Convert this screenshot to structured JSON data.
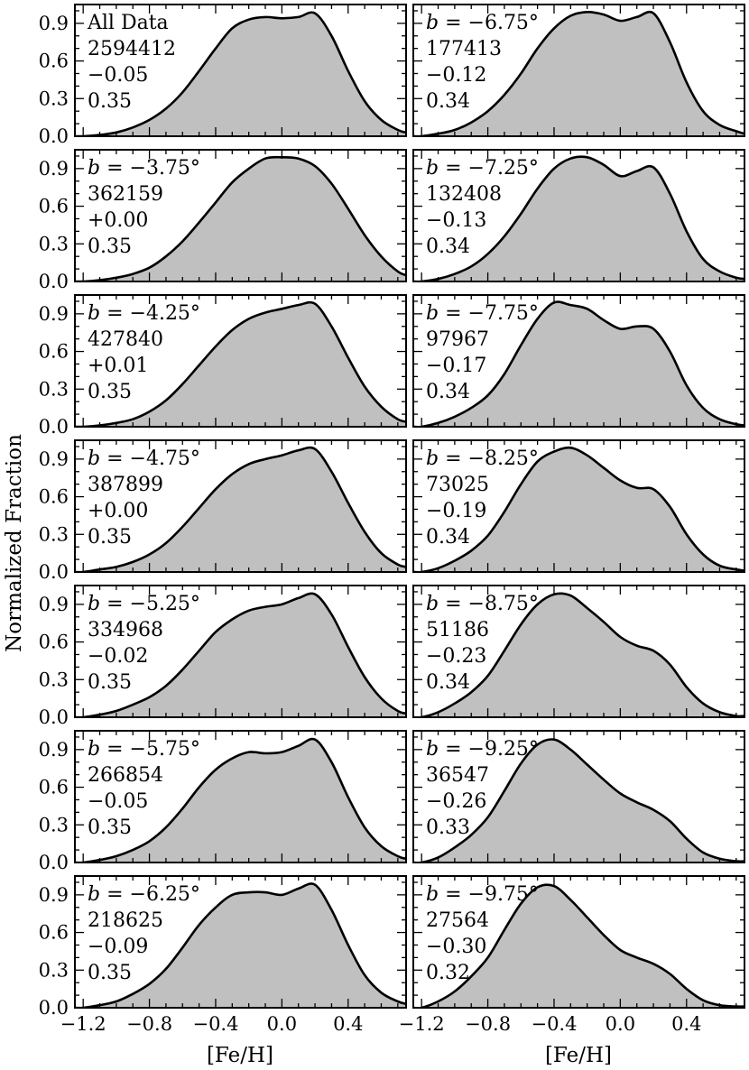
{
  "ylabel": "Normalized Fraction",
  "xlabel": "[Fe/H]",
  "colors": {
    "fill": "#c0c0c0",
    "line": "#000000",
    "frame": "#000000"
  },
  "chart_data": {
    "type": "area",
    "grid": false,
    "xlim": [
      -1.25,
      0.75
    ],
    "ylim": [
      0.0,
      1.05
    ],
    "xticks": [
      -1.2,
      -0.8,
      -0.4,
      0.0,
      0.4
    ],
    "xtick_labels": [
      "-1.2",
      "-0.8",
      "-0.4",
      "0.0",
      "0.4"
    ],
    "yticks": [
      0.0,
      0.3,
      0.6,
      0.9
    ],
    "ytick_labels": [
      "0.0",
      "0.3",
      "0.6",
      "0.9"
    ],
    "panels": [
      {
        "col": 0,
        "row": 0,
        "label": "All Data",
        "count": "2594412",
        "mean": "−0.05",
        "sigma": "0.35",
        "x": [
          -1.25,
          -1.2,
          -1.1,
          -1.0,
          -0.9,
          -0.8,
          -0.7,
          -0.6,
          -0.5,
          -0.4,
          -0.3,
          -0.2,
          -0.1,
          0.0,
          0.1,
          0.2,
          0.3,
          0.4,
          0.5,
          0.6,
          0.7,
          0.75
        ],
        "y": [
          0.0,
          0.0,
          0.01,
          0.03,
          0.07,
          0.13,
          0.22,
          0.35,
          0.52,
          0.7,
          0.86,
          0.93,
          0.95,
          0.94,
          0.95,
          0.98,
          0.8,
          0.52,
          0.28,
          0.13,
          0.05,
          0.03
        ]
      },
      {
        "col": 1,
        "row": 0,
        "label": "b=−6.75°",
        "count": "177413",
        "mean": "−0.12",
        "sigma": "0.34",
        "x": [
          -1.25,
          -1.2,
          -1.1,
          -1.0,
          -0.9,
          -0.8,
          -0.7,
          -0.6,
          -0.5,
          -0.4,
          -0.3,
          -0.2,
          -0.1,
          0.0,
          0.1,
          0.2,
          0.3,
          0.4,
          0.5,
          0.6,
          0.7,
          0.75
        ],
        "y": [
          0.0,
          0.0,
          0.02,
          0.05,
          0.11,
          0.2,
          0.33,
          0.5,
          0.7,
          0.86,
          0.96,
          0.99,
          0.97,
          0.92,
          0.95,
          0.98,
          0.75,
          0.43,
          0.2,
          0.09,
          0.04,
          0.02
        ]
      },
      {
        "col": 0,
        "row": 1,
        "label": "b=−3.75°",
        "count": "362159",
        "mean": "+0.00",
        "sigma": "0.35",
        "x": [
          -1.25,
          -1.2,
          -1.1,
          -1.0,
          -0.9,
          -0.8,
          -0.7,
          -0.6,
          -0.5,
          -0.4,
          -0.3,
          -0.2,
          -0.1,
          0.0,
          0.1,
          0.2,
          0.3,
          0.4,
          0.5,
          0.6,
          0.7,
          0.75
        ],
        "y": [
          0.0,
          0.0,
          0.01,
          0.03,
          0.06,
          0.11,
          0.2,
          0.32,
          0.47,
          0.63,
          0.79,
          0.9,
          0.98,
          0.99,
          0.98,
          0.92,
          0.78,
          0.58,
          0.37,
          0.2,
          0.08,
          0.05
        ]
      },
      {
        "col": 1,
        "row": 1,
        "label": "b=−7.25°",
        "count": "132408",
        "mean": "−0.13",
        "sigma": "0.34",
        "x": [
          -1.25,
          -1.2,
          -1.1,
          -1.0,
          -0.9,
          -0.8,
          -0.7,
          -0.6,
          -0.5,
          -0.4,
          -0.3,
          -0.2,
          -0.1,
          0.0,
          0.1,
          0.2,
          0.3,
          0.4,
          0.5,
          0.6,
          0.7,
          0.75
        ],
        "y": [
          0.0,
          0.0,
          0.02,
          0.06,
          0.12,
          0.22,
          0.36,
          0.54,
          0.74,
          0.9,
          0.98,
          0.99,
          0.93,
          0.84,
          0.88,
          0.91,
          0.7,
          0.4,
          0.18,
          0.08,
          0.03,
          0.02
        ]
      },
      {
        "col": 0,
        "row": 2,
        "label": "b=−4.25°",
        "count": "427840",
        "mean": "+0.01",
        "sigma": "0.35",
        "x": [
          -1.25,
          -1.2,
          -1.1,
          -1.0,
          -0.9,
          -0.8,
          -0.7,
          -0.6,
          -0.5,
          -0.4,
          -0.3,
          -0.2,
          -0.1,
          0.0,
          0.1,
          0.2,
          0.3,
          0.4,
          0.5,
          0.6,
          0.7,
          0.75
        ],
        "y": [
          0.0,
          0.0,
          0.01,
          0.03,
          0.06,
          0.12,
          0.21,
          0.34,
          0.49,
          0.64,
          0.77,
          0.86,
          0.91,
          0.94,
          0.97,
          0.98,
          0.8,
          0.55,
          0.32,
          0.16,
          0.06,
          0.04
        ]
      },
      {
        "col": 1,
        "row": 2,
        "label": "b=−7.75°",
        "count": "97967",
        "mean": "−0.17",
        "sigma": "0.34",
        "x": [
          -1.25,
          -1.2,
          -1.1,
          -1.0,
          -0.9,
          -0.8,
          -0.7,
          -0.6,
          -0.5,
          -0.4,
          -0.3,
          -0.2,
          -0.1,
          0.0,
          0.1,
          0.2,
          0.3,
          0.4,
          0.5,
          0.6,
          0.7,
          0.75
        ],
        "y": [
          0.0,
          0.0,
          0.03,
          0.08,
          0.15,
          0.25,
          0.42,
          0.65,
          0.86,
          0.99,
          0.97,
          0.94,
          0.85,
          0.78,
          0.8,
          0.78,
          0.6,
          0.33,
          0.15,
          0.06,
          0.02,
          0.01
        ]
      },
      {
        "col": 0,
        "row": 3,
        "label": "b=−4.75°",
        "count": "387899",
        "mean": "+0.00",
        "sigma": "0.35",
        "x": [
          -1.25,
          -1.2,
          -1.1,
          -1.0,
          -0.9,
          -0.8,
          -0.7,
          -0.6,
          -0.5,
          -0.4,
          -0.3,
          -0.2,
          -0.1,
          0.0,
          0.1,
          0.2,
          0.3,
          0.4,
          0.5,
          0.6,
          0.7,
          0.75
        ],
        "y": [
          0.0,
          0.0,
          0.02,
          0.04,
          0.08,
          0.14,
          0.23,
          0.36,
          0.51,
          0.66,
          0.78,
          0.86,
          0.9,
          0.93,
          0.97,
          0.98,
          0.8,
          0.55,
          0.32,
          0.15,
          0.06,
          0.04
        ]
      },
      {
        "col": 1,
        "row": 3,
        "label": "b=−8.25°",
        "count": "73025",
        "mean": "−0.19",
        "sigma": "0.34",
        "x": [
          -1.25,
          -1.2,
          -1.1,
          -1.0,
          -0.9,
          -0.8,
          -0.7,
          -0.6,
          -0.5,
          -0.4,
          -0.3,
          -0.2,
          -0.1,
          0.0,
          0.1,
          0.2,
          0.3,
          0.4,
          0.5,
          0.6,
          0.7,
          0.75
        ],
        "y": [
          0.0,
          0.0,
          0.03,
          0.09,
          0.17,
          0.29,
          0.48,
          0.7,
          0.88,
          0.96,
          0.99,
          0.93,
          0.83,
          0.73,
          0.67,
          0.66,
          0.52,
          0.3,
          0.14,
          0.05,
          0.02,
          0.01
        ]
      },
      {
        "col": 0,
        "row": 4,
        "label": "b=−5.25°",
        "count": "334968",
        "mean": "−0.02",
        "sigma": "0.35",
        "x": [
          -1.25,
          -1.2,
          -1.1,
          -1.0,
          -0.9,
          -0.8,
          -0.7,
          -0.6,
          -0.5,
          -0.4,
          -0.3,
          -0.2,
          -0.1,
          0.0,
          0.1,
          0.2,
          0.3,
          0.4,
          0.5,
          0.6,
          0.7,
          0.75
        ],
        "y": [
          0.0,
          0.0,
          0.02,
          0.05,
          0.1,
          0.16,
          0.25,
          0.38,
          0.53,
          0.68,
          0.78,
          0.85,
          0.88,
          0.9,
          0.95,
          0.98,
          0.82,
          0.56,
          0.32,
          0.15,
          0.05,
          0.03
        ]
      },
      {
        "col": 1,
        "row": 4,
        "label": "b=−8.75°",
        "count": "51186",
        "mean": "−0.23",
        "sigma": "0.34",
        "x": [
          -1.25,
          -1.2,
          -1.1,
          -1.0,
          -0.9,
          -0.8,
          -0.7,
          -0.6,
          -0.5,
          -0.4,
          -0.3,
          -0.2,
          -0.1,
          0.0,
          0.1,
          0.2,
          0.3,
          0.4,
          0.5,
          0.6,
          0.7,
          0.75
        ],
        "y": [
          0.0,
          0.0,
          0.04,
          0.11,
          0.2,
          0.33,
          0.53,
          0.74,
          0.9,
          0.98,
          0.97,
          0.87,
          0.76,
          0.64,
          0.57,
          0.53,
          0.42,
          0.24,
          0.11,
          0.04,
          0.01,
          0.01
        ]
      },
      {
        "col": 0,
        "row": 5,
        "label": "b=−5.75°",
        "count": "266854",
        "mean": "−0.05",
        "sigma": "0.35",
        "x": [
          -1.25,
          -1.2,
          -1.1,
          -1.0,
          -0.9,
          -0.8,
          -0.7,
          -0.6,
          -0.5,
          -0.4,
          -0.3,
          -0.2,
          -0.1,
          0.0,
          0.1,
          0.2,
          0.3,
          0.4,
          0.5,
          0.6,
          0.7,
          0.75
        ],
        "y": [
          0.0,
          0.0,
          0.02,
          0.05,
          0.1,
          0.17,
          0.28,
          0.43,
          0.6,
          0.74,
          0.83,
          0.88,
          0.87,
          0.88,
          0.93,
          0.98,
          0.8,
          0.52,
          0.28,
          0.13,
          0.05,
          0.03
        ]
      },
      {
        "col": 1,
        "row": 5,
        "label": "b=−9.25°",
        "count": "36547",
        "mean": "−0.26",
        "sigma": "0.33",
        "x": [
          -1.25,
          -1.2,
          -1.1,
          -1.0,
          -0.9,
          -0.8,
          -0.7,
          -0.6,
          -0.5,
          -0.4,
          -0.3,
          -0.2,
          -0.1,
          0.0,
          0.1,
          0.2,
          0.3,
          0.4,
          0.5,
          0.6,
          0.7,
          0.75
        ],
        "y": [
          0.0,
          0.0,
          0.04,
          0.12,
          0.22,
          0.36,
          0.57,
          0.79,
          0.94,
          0.98,
          0.9,
          0.78,
          0.66,
          0.55,
          0.48,
          0.42,
          0.33,
          0.19,
          0.08,
          0.03,
          0.01,
          0.01
        ]
      },
      {
        "col": 0,
        "row": 6,
        "label": "b=−6.25°",
        "count": "218625",
        "mean": "−0.09",
        "sigma": "0.35",
        "x": [
          -1.25,
          -1.2,
          -1.1,
          -1.0,
          -0.9,
          -0.8,
          -0.7,
          -0.6,
          -0.5,
          -0.4,
          -0.3,
          -0.2,
          -0.1,
          0.0,
          0.1,
          0.2,
          0.3,
          0.4,
          0.5,
          0.6,
          0.7,
          0.75
        ],
        "y": [
          0.0,
          0.0,
          0.02,
          0.05,
          0.11,
          0.19,
          0.31,
          0.48,
          0.66,
          0.8,
          0.9,
          0.92,
          0.92,
          0.9,
          0.95,
          0.98,
          0.78,
          0.5,
          0.26,
          0.12,
          0.05,
          0.03
        ]
      },
      {
        "col": 1,
        "row": 6,
        "label": "b=−9.75°",
        "count": "27564",
        "mean": "−0.30",
        "sigma": "0.32",
        "x": [
          -1.25,
          -1.2,
          -1.1,
          -1.0,
          -0.9,
          -0.8,
          -0.7,
          -0.6,
          -0.5,
          -0.4,
          -0.3,
          -0.2,
          -0.1,
          0.0,
          0.1,
          0.2,
          0.3,
          0.4,
          0.5,
          0.6,
          0.7,
          0.75
        ],
        "y": [
          0.0,
          0.0,
          0.05,
          0.13,
          0.25,
          0.4,
          0.62,
          0.83,
          0.96,
          0.97,
          0.86,
          0.72,
          0.58,
          0.46,
          0.4,
          0.35,
          0.27,
          0.15,
          0.06,
          0.02,
          0.01,
          0.01
        ]
      }
    ]
  }
}
